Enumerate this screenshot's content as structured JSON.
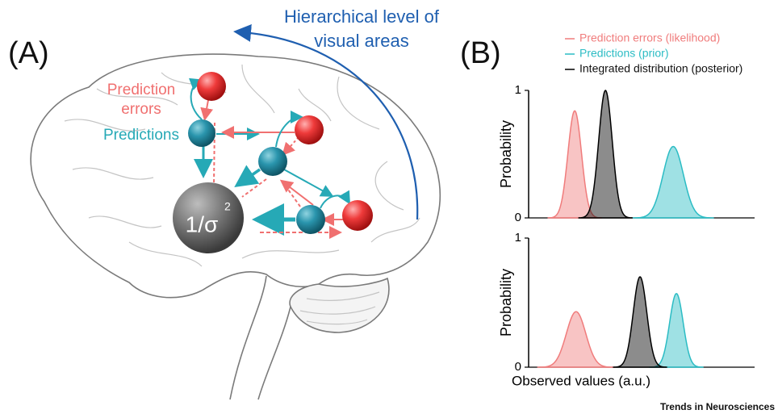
{
  "figure": {
    "label_a": "(A)",
    "label_b": "(B)",
    "hierarchy_label": [
      "Hierarchical level of",
      "visual areas"
    ],
    "prediction_errors_label": [
      "Prediction",
      "errors"
    ],
    "predictions_label": "Predictions",
    "precision_label": {
      "base": "1/σ",
      "exponent": "2"
    },
    "footer": "Trends in Neurosciences"
  },
  "chart_data": [
    {
      "type": "density",
      "y_label": "Probability",
      "xlim": [
        0,
        100
      ],
      "ylim": [
        0,
        1
      ],
      "yticks": [
        0,
        1
      ],
      "series": [
        {
          "name": "Prediction errors (likelihood)",
          "color": "#f07c7c",
          "mean": 20.4,
          "sd": 3,
          "peak": 0.84
        },
        {
          "name": "Predictions (prior)",
          "color": "#2bbcc4",
          "mean": 64,
          "sd": 4.5,
          "peak": 0.56
        },
        {
          "name": "Integrated distribution (posterior)",
          "color": "#000000",
          "mean": 34,
          "sd": 3,
          "peak": 1
        }
      ]
    },
    {
      "type": "density",
      "y_label": "Probability",
      "x_label": "Observed values (a.u.)",
      "xlim": [
        0,
        100
      ],
      "ylim": [
        0,
        1
      ],
      "yticks": [
        0,
        1
      ],
      "series": [
        {
          "color": "#f07c7c",
          "mean": 21,
          "sd": 4.3,
          "peak": 0.43
        },
        {
          "color": "#2bbcc4",
          "mean": 65.4,
          "sd": 3,
          "peak": 0.57
        },
        {
          "color": "#000000",
          "mean": 49.3,
          "sd": 3,
          "peak": 0.7
        }
      ]
    }
  ]
}
